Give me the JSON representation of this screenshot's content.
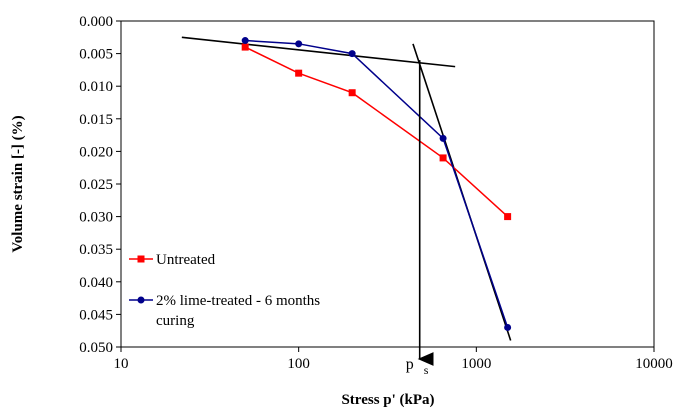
{
  "chart_data": {
    "type": "scatter",
    "x_scale": "log",
    "y_inverted": true,
    "xlim": [
      10,
      10000
    ],
    "ylim": [
      0.0,
      0.05
    ],
    "xlabel": "Stress p' (kPa)",
    "ylabel": "Volume strain [-] (%)",
    "x_ticks": [
      "10",
      "100",
      "1000",
      "10000"
    ],
    "y_ticks": [
      "0.000",
      "0.005",
      "0.010",
      "0.015",
      "0.020",
      "0.025",
      "0.030",
      "0.035",
      "0.040",
      "0.045",
      "0.050"
    ],
    "series": [
      {
        "name": "Untreated",
        "color": "#ff0000",
        "marker": "square",
        "x": [
          50,
          100,
          200,
          650,
          1500
        ],
        "y": [
          0.004,
          0.008,
          0.011,
          0.021,
          0.03
        ]
      },
      {
        "name": "2% lime-treated - 6 months curing",
        "name_lines": [
          "2% lime-treated - 6 months",
          "curing"
        ],
        "color": "#00008b",
        "marker": "circle",
        "x": [
          50,
          100,
          200,
          650,
          1500
        ],
        "y": [
          0.003,
          0.0035,
          0.005,
          0.018,
          0.047
        ]
      }
    ],
    "construction_lines": [
      {
        "x": [
          22,
          760
        ],
        "y": [
          0.0025,
          0.007
        ]
      },
      {
        "x": [
          440,
          1560
        ],
        "y": [
          0.0035,
          0.049
        ]
      }
    ],
    "annotation": {
      "label_main": "p",
      "label_sub": "s",
      "x": 480,
      "y_from": 0.006,
      "y_to": 0.05
    },
    "legend_position": "bottom-left",
    "grid": false
  }
}
